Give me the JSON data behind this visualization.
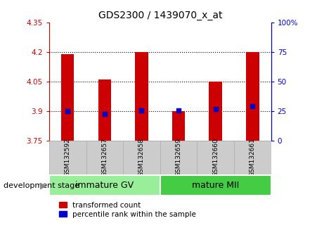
{
  "title": "GDS2300 / 1439070_x_at",
  "samples": [
    "GSM132592",
    "GSM132657",
    "GSM132658",
    "GSM132659",
    "GSM132660",
    "GSM132661"
  ],
  "bar_values": [
    4.19,
    4.06,
    4.2,
    3.9,
    4.05,
    4.2
  ],
  "bar_bottom": 3.75,
  "blue_dot_values": [
    3.9,
    3.885,
    3.902,
    3.902,
    3.91,
    3.925
  ],
  "ylim_left": [
    3.75,
    4.35
  ],
  "ylim_right": [
    0,
    100
  ],
  "yticks_left": [
    3.75,
    3.9,
    4.05,
    4.2,
    4.35
  ],
  "yticks_right": [
    0,
    25,
    50,
    75,
    100
  ],
  "ytick_labels_left": [
    "3.75",
    "3.9",
    "4.05",
    "4.2",
    "4.35"
  ],
  "ytick_labels_right": [
    "0",
    "25",
    "50",
    "75",
    "100%"
  ],
  "hlines": [
    3.9,
    4.05,
    4.2
  ],
  "group1_label": "immature GV",
  "group2_label": "mature MII",
  "group1_indices": [
    0,
    1,
    2
  ],
  "group2_indices": [
    3,
    4,
    5
  ],
  "stage_label": "development stage",
  "legend1_label": "transformed count",
  "legend2_label": "percentile rank within the sample",
  "bar_color": "#cc0000",
  "dot_color": "#0000cc",
  "group1_color": "#99ee99",
  "group2_color": "#44cc44",
  "tick_color_left": "#cc0000",
  "tick_color_right": "#0000cc",
  "bar_width": 0.35,
  "bg_xticklabel": "#cccccc",
  "title_fontsize": 10,
  "sample_fontsize": 6.5,
  "group_fontsize": 9,
  "legend_fontsize": 7.5,
  "stage_fontsize": 8,
  "ytick_fontsize": 7.5
}
